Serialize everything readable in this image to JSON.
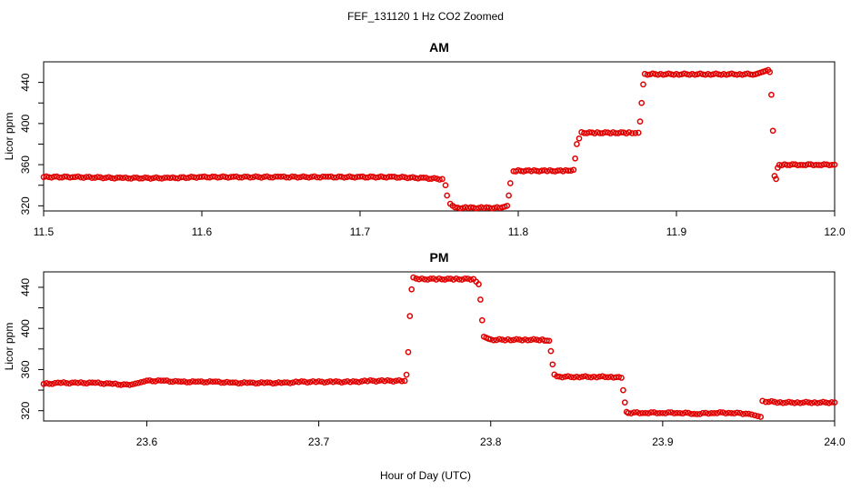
{
  "figure_title": "FEF_131120 1 Hz CO2 Zoomed",
  "xlabel": "Hour of Day (UTC)",
  "colors": {
    "points": "#e00000",
    "axis": "#000000",
    "background": "#ffffff"
  },
  "chart_data": [
    {
      "type": "scatter",
      "title": "AM",
      "xlabel": "",
      "ylabel": "Licor ppm",
      "xlim": [
        11.5,
        12.0
      ],
      "ylim": [
        315,
        460
      ],
      "xticks": [
        11.5,
        11.6,
        11.7,
        11.8,
        11.9,
        12.0
      ],
      "xtick_labels": [
        "11.5",
        "11.6",
        "11.7",
        "11.8",
        "11.9",
        "12.0"
      ],
      "yticks": [
        320,
        360,
        400,
        440
      ],
      "ytick_labels": [
        "320",
        "360",
        "400",
        "440"
      ],
      "grid": false,
      "legend": "none",
      "series": [
        {
          "x": [
            11.5,
            11.52,
            11.55,
            11.58,
            11.6,
            11.62,
            11.65,
            11.68,
            11.7,
            11.72,
            11.74,
            11.752,
            11.754,
            11.755,
            11.757,
            11.76,
            11.77,
            11.78,
            11.79,
            11.793,
            11.794,
            11.795,
            11.797,
            11.8,
            11.81,
            11.82,
            11.83,
            11.835,
            11.836,
            11.837,
            11.84,
            11.85,
            11.86,
            11.87,
            11.876,
            11.877,
            11.878,
            11.879,
            11.88,
            11.89,
            11.9,
            11.91,
            11.92,
            11.93,
            11.94,
            11.95,
            11.958,
            11.959,
            11.96,
            11.961,
            11.962,
            11.963,
            11.964,
            11.965,
            11.97,
            11.98,
            11.99,
            12.0
          ],
          "y": [
            348,
            348,
            347,
            347,
            348,
            348,
            348,
            348,
            348,
            348,
            347,
            346,
            340,
            330,
            322,
            318,
            318,
            318,
            318,
            320,
            330,
            342,
            353,
            354,
            354,
            354,
            354,
            355,
            366,
            380,
            391,
            391,
            391,
            391,
            391,
            402,
            420,
            438,
            448,
            448,
            448,
            448,
            448,
            448,
            448,
            448,
            452,
            450,
            428,
            393,
            349,
            346,
            357,
            360,
            360,
            360,
            360,
            360
          ]
        }
      ]
    },
    {
      "type": "scatter",
      "title": "PM",
      "xlabel": "Hour of Day (UTC)",
      "ylabel": "Licor ppm",
      "xlim": [
        23.54,
        24.0
      ],
      "ylim": [
        310,
        455
      ],
      "xticks": [
        23.6,
        23.7,
        23.8,
        23.9,
        24.0
      ],
      "xtick_labels": [
        "23.6",
        "23.7",
        "23.8",
        "23.9",
        "24.0"
      ],
      "yticks": [
        320,
        360,
        400,
        440
      ],
      "ytick_labels": [
        "320",
        "360",
        "400",
        "440"
      ],
      "grid": false,
      "legend": "none",
      "series": [
        {
          "x": [
            23.54,
            23.55,
            23.56,
            23.57,
            23.58,
            23.59,
            23.6,
            23.61,
            23.62,
            23.63,
            23.64,
            23.65,
            23.66,
            23.67,
            23.68,
            23.69,
            23.7,
            23.71,
            23.72,
            23.73,
            23.74,
            23.75,
            23.751,
            23.752,
            23.753,
            23.754,
            23.755,
            23.76,
            23.77,
            23.78,
            23.79,
            23.793,
            23.794,
            23.795,
            23.796,
            23.8,
            23.81,
            23.82,
            23.83,
            23.834,
            23.835,
            23.836,
            23.837,
            23.84,
            23.85,
            23.86,
            23.87,
            23.876,
            23.877,
            23.878,
            23.879,
            23.88,
            23.89,
            23.9,
            23.91,
            23.92,
            23.93,
            23.94,
            23.95,
            23.957,
            23.958,
            23.96,
            23.97,
            23.98,
            23.99,
            24.0
          ],
          "y": [
            346,
            347,
            347,
            347,
            346,
            345,
            349,
            349,
            348,
            348,
            348,
            347,
            347,
            347,
            347,
            348,
            348,
            348,
            348,
            349,
            349,
            349,
            355,
            377,
            412,
            438,
            449,
            448,
            448,
            448,
            448,
            443,
            428,
            408,
            392,
            389,
            389,
            389,
            389,
            388,
            378,
            365,
            355,
            353,
            353,
            353,
            353,
            352,
            340,
            328,
            319,
            318,
            318,
            318,
            318,
            317,
            318,
            318,
            317,
            314,
            330,
            329,
            328,
            328,
            328,
            328
          ]
        }
      ]
    }
  ]
}
